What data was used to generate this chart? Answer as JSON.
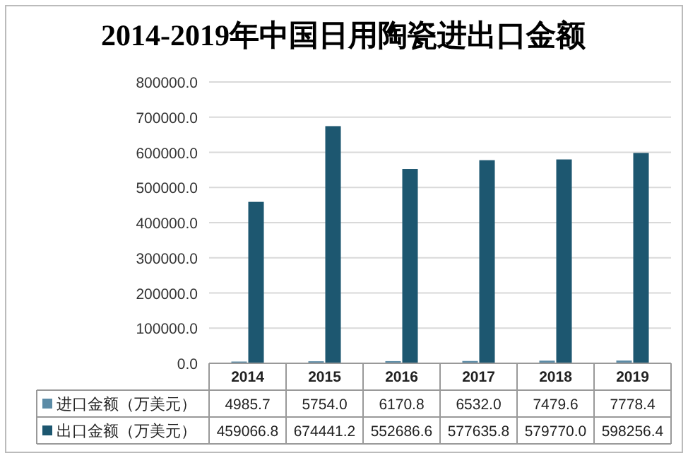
{
  "chart_data": {
    "type": "bar",
    "title": "2014-2019年中国日用陶瓷进出口金额",
    "categories": [
      "2014",
      "2015",
      "2016",
      "2017",
      "2018",
      "2019"
    ],
    "series": [
      {
        "name": "进口金额（万美元）",
        "color": "#5b8ba6",
        "values": [
          4985.7,
          5754.0,
          6170.8,
          6532.0,
          7479.6,
          7778.4
        ],
        "value_labels": [
          "4985.7",
          "5754.0",
          "6170.8",
          "6532.0",
          "7479.6",
          "7778.4"
        ]
      },
      {
        "name": "出口金额（万美元）",
        "color": "#1d5770",
        "values": [
          459066.8,
          674441.2,
          552686.6,
          577635.8,
          579770.0,
          598256.4
        ],
        "value_labels": [
          "459066.8",
          "674441.2",
          "552686.6",
          "577635.8",
          "579770.0",
          "598256.4"
        ]
      }
    ],
    "ylim": [
      0,
      800000
    ],
    "yticks": [
      {
        "value": 0,
        "label": "0.0"
      },
      {
        "value": 100000,
        "label": "100000.0"
      },
      {
        "value": 200000,
        "label": "200000.0"
      },
      {
        "value": 300000,
        "label": "300000.0"
      },
      {
        "value": 400000,
        "label": "400000.0"
      },
      {
        "value": 500000,
        "label": "500000.0"
      },
      {
        "value": 600000,
        "label": "600000.0"
      },
      {
        "value": 700000,
        "label": "700000.0"
      },
      {
        "value": 800000,
        "label": "800000.0"
      }
    ],
    "grid": "y",
    "legend": "bottom"
  }
}
